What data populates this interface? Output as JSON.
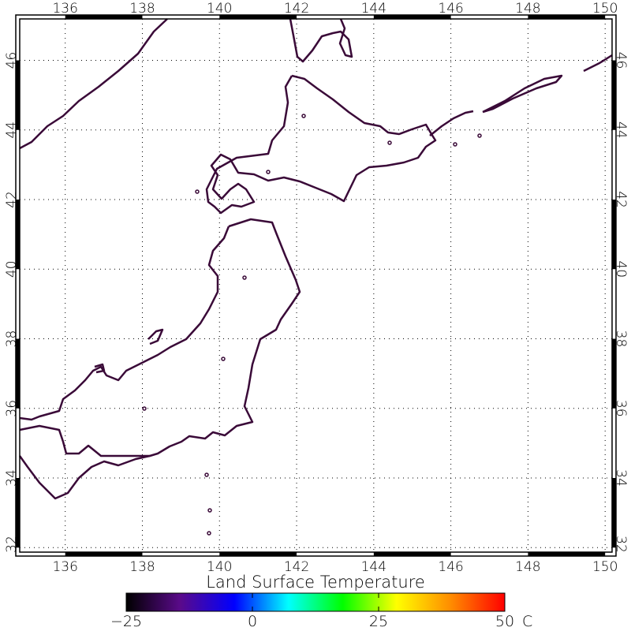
{
  "map": {
    "lon_range": [
      134.82,
      150.18
    ],
    "lat_range": [
      31.87,
      47.19
    ],
    "lon_ticks": [
      "136",
      "138",
      "140",
      "142",
      "144",
      "146",
      "148",
      "150"
    ],
    "lat_ticks": [
      "32",
      "34",
      "36",
      "38",
      "40",
      "42",
      "44",
      "46"
    ],
    "gridlines": true,
    "coastline_color": "#3a0a38"
  },
  "colorbar": {
    "title": "Land Surface Temperature",
    "min": -25,
    "max": 50,
    "tick_labels": [
      "−25",
      "0",
      "25",
      "50"
    ],
    "unit": "C",
    "colors": [
      "#000000",
      "#5a0a8a",
      "#0000ff",
      "#00ffff",
      "#00ff00",
      "#ffff00",
      "#ff8c00",
      "#ff0000"
    ]
  }
}
